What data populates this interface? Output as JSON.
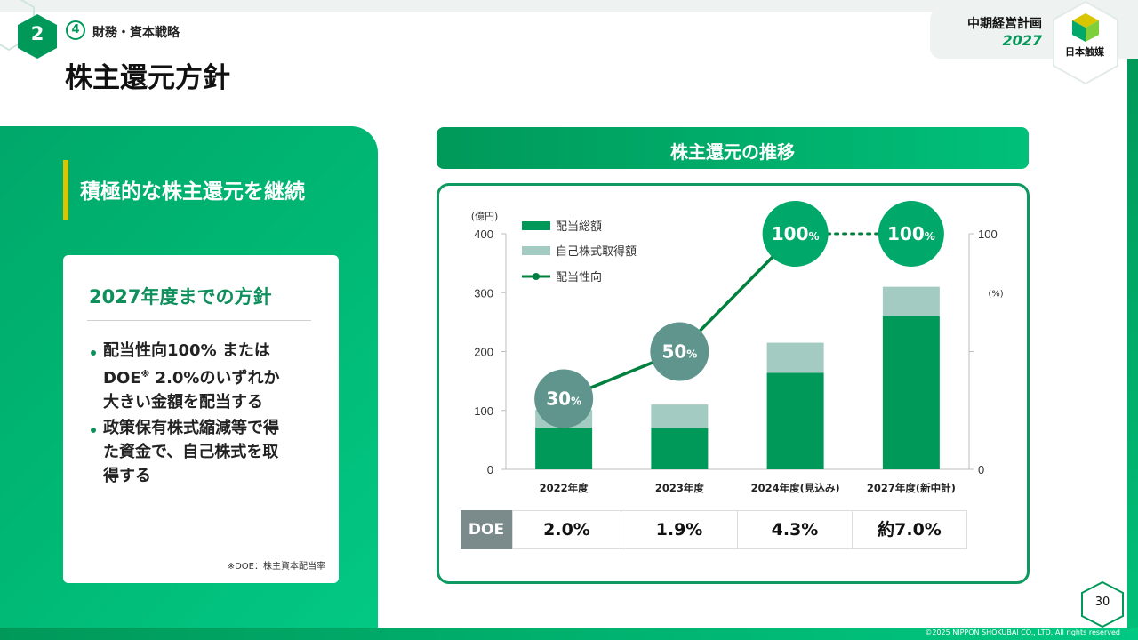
{
  "header": {
    "section_number": "2",
    "subsection_number": "4",
    "subsection_title": "財務・資本戦略",
    "page_title": "株主還元方針",
    "plan_label": "中期経営計画",
    "plan_year": "2027",
    "company_name": "日本触媒"
  },
  "left_panel": {
    "heading": "積極的な株主還元を継続",
    "card_title": "2027年度までの方針",
    "bullets": [
      {
        "line1": "配当性向100% または",
        "line2a": "DOE",
        "mark": "※",
        "line2b": " 2.0%のいずれか",
        "line3": "大きい金額を配当する"
      },
      {
        "line1": "政策保有株式縮減等で得",
        "line2": "た資金で、自己株式を取",
        "line3": "得する"
      }
    ],
    "footnote": "※DOE：株主資本配当率"
  },
  "chart_header": "株主還元の推移",
  "chart_data": {
    "type": "bar",
    "categories": [
      "2022年度",
      "2023年度",
      "2024年度(見込み)",
      "2027年度(新中計)"
    ],
    "series": [
      {
        "name": "配当総額",
        "type": "bar",
        "stack": "total",
        "values": [
          71,
          70,
          164,
          260
        ],
        "color": "#00995a"
      },
      {
        "name": "自己株式取得額",
        "type": "bar",
        "stack": "total",
        "values": [
          30,
          40,
          51,
          50
        ],
        "color": "#a3cbc2"
      },
      {
        "name": "配当性向",
        "type": "line",
        "axis": "right",
        "values": [
          30,
          50,
          100,
          100
        ],
        "labels": [
          "30",
          "50",
          "100",
          "100"
        ],
        "unit": "%",
        "color": "#00803f",
        "last_segment": "dotted"
      }
    ],
    "y_left": {
      "unit_label": "(億円)",
      "ticks": [
        0,
        100,
        200,
        300,
        400
      ],
      "range": [
        0,
        400
      ]
    },
    "y_right": {
      "unit_label": "(%)",
      "ticks": [
        0,
        100
      ],
      "range": [
        0,
        100
      ]
    }
  },
  "doe_row": {
    "label": "DOE",
    "values": [
      "2.0%",
      "1.9%",
      "4.3%",
      "約7.0%"
    ]
  },
  "footer": {
    "page_number": "30",
    "copyright": "©2025 NIPPON SHOKUBAI CO., LTD. All rights reserved"
  },
  "colors": {
    "brand_green": "#00995a",
    "light_bar": "#a3cbc2",
    "payout_circle_low": "#5f958d",
    "payout_circle_high": "#00a86a"
  }
}
